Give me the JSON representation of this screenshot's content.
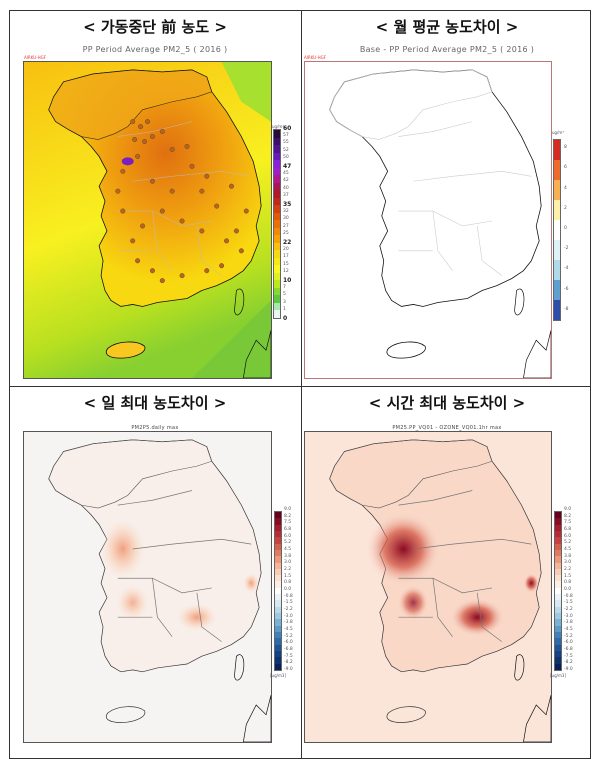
{
  "figure": {
    "panels": [
      {
        "id": "pre-shutdown",
        "title": "< 가동중단 前 농도 >",
        "subtitle": "PP Period Average PM2_5 ( 2016 )",
        "tag": "AIRKU-HGF",
        "colorbar": {
          "unit": "ug/m³",
          "ticks": [
            "60",
            "57",
            "55",
            "52",
            "50",
            "47",
            "45",
            "42",
            "40",
            "37",
            "35",
            "32",
            "30",
            "27",
            "25",
            "22",
            "20",
            "17",
            "15",
            "12",
            "10",
            "7",
            "5",
            "3",
            "1",
            "0"
          ],
          "bold_ticks": [
            "60",
            "47",
            "35",
            "22",
            "10",
            "0"
          ],
          "colors": [
            "#2a0a3a",
            "#3b0f6a",
            "#4e1590",
            "#6a18b8",
            "#8a20d8",
            "#a020c8",
            "#b01890",
            "#a81858",
            "#b01a28",
            "#c02818",
            "#d04010",
            "#e05808",
            "#e87008",
            "#f08808",
            "#f8a008",
            "#f8c010",
            "#f8d810",
            "#f8e818",
            "#f8f820",
            "#e0f020",
            "#b8e820",
            "#88d830",
            "#60c840",
            "#a8e8a8",
            "#e8f8f0"
          ]
        }
      },
      {
        "id": "monthly-avg-diff",
        "title": "< 월 평균 농도차이 >",
        "subtitle": "Base - PP Period Average PM2_5 ( 2016 )",
        "tag": "AIRKU-HGF",
        "colorbar": {
          "unit": "ug/m³",
          "ticks": [
            "8",
            "6",
            "4",
            "2",
            "0",
            "-2",
            "-4",
            "-6",
            "-8"
          ],
          "colors": [
            "#d62a22",
            "#f06a2a",
            "#f8b050",
            "#fdf0a8",
            "#ffffff",
            "#e0f2f6",
            "#b0daea",
            "#5fa0d0",
            "#2c4ea8"
          ]
        }
      },
      {
        "id": "daily-max-diff",
        "title": "< 일 최대 농도차이 >",
        "subtitle": "PM2P5.daily max",
        "colorbar": {
          "unit": "[ug/m3]",
          "ticks": [
            "9.0",
            "8.2",
            "7.5",
            "6.8",
            "6.0",
            "5.2",
            "4.5",
            "3.8",
            "3.0",
            "2.2",
            "1.5",
            "0.8",
            "0.0",
            "-0.8",
            "-1.5",
            "-2.2",
            "-3.0",
            "-3.8",
            "-4.5",
            "-5.2",
            "-6.0",
            "-6.8",
            "-7.5",
            "-8.2",
            "-9.0"
          ]
        }
      },
      {
        "id": "hourly-max-diff",
        "title": "< 시간 최대 농도차이 >",
        "subtitle": "PM25.PP_VQ01 - OZONE_VQ01.1hr max",
        "colorbar": {
          "unit": "[ug/m3]",
          "ticks": [
            "9.0",
            "8.2",
            "7.5",
            "6.8",
            "6.0",
            "5.2",
            "4.5",
            "3.8",
            "3.0",
            "2.2",
            "1.5",
            "0.8",
            "0.0",
            "-0.8",
            "-1.5",
            "-2.2",
            "-3.0",
            "-3.8",
            "-4.5",
            "-5.2",
            "-6.0",
            "-6.8",
            "-7.5",
            "-8.2",
            "-9.0"
          ]
        }
      }
    ]
  }
}
